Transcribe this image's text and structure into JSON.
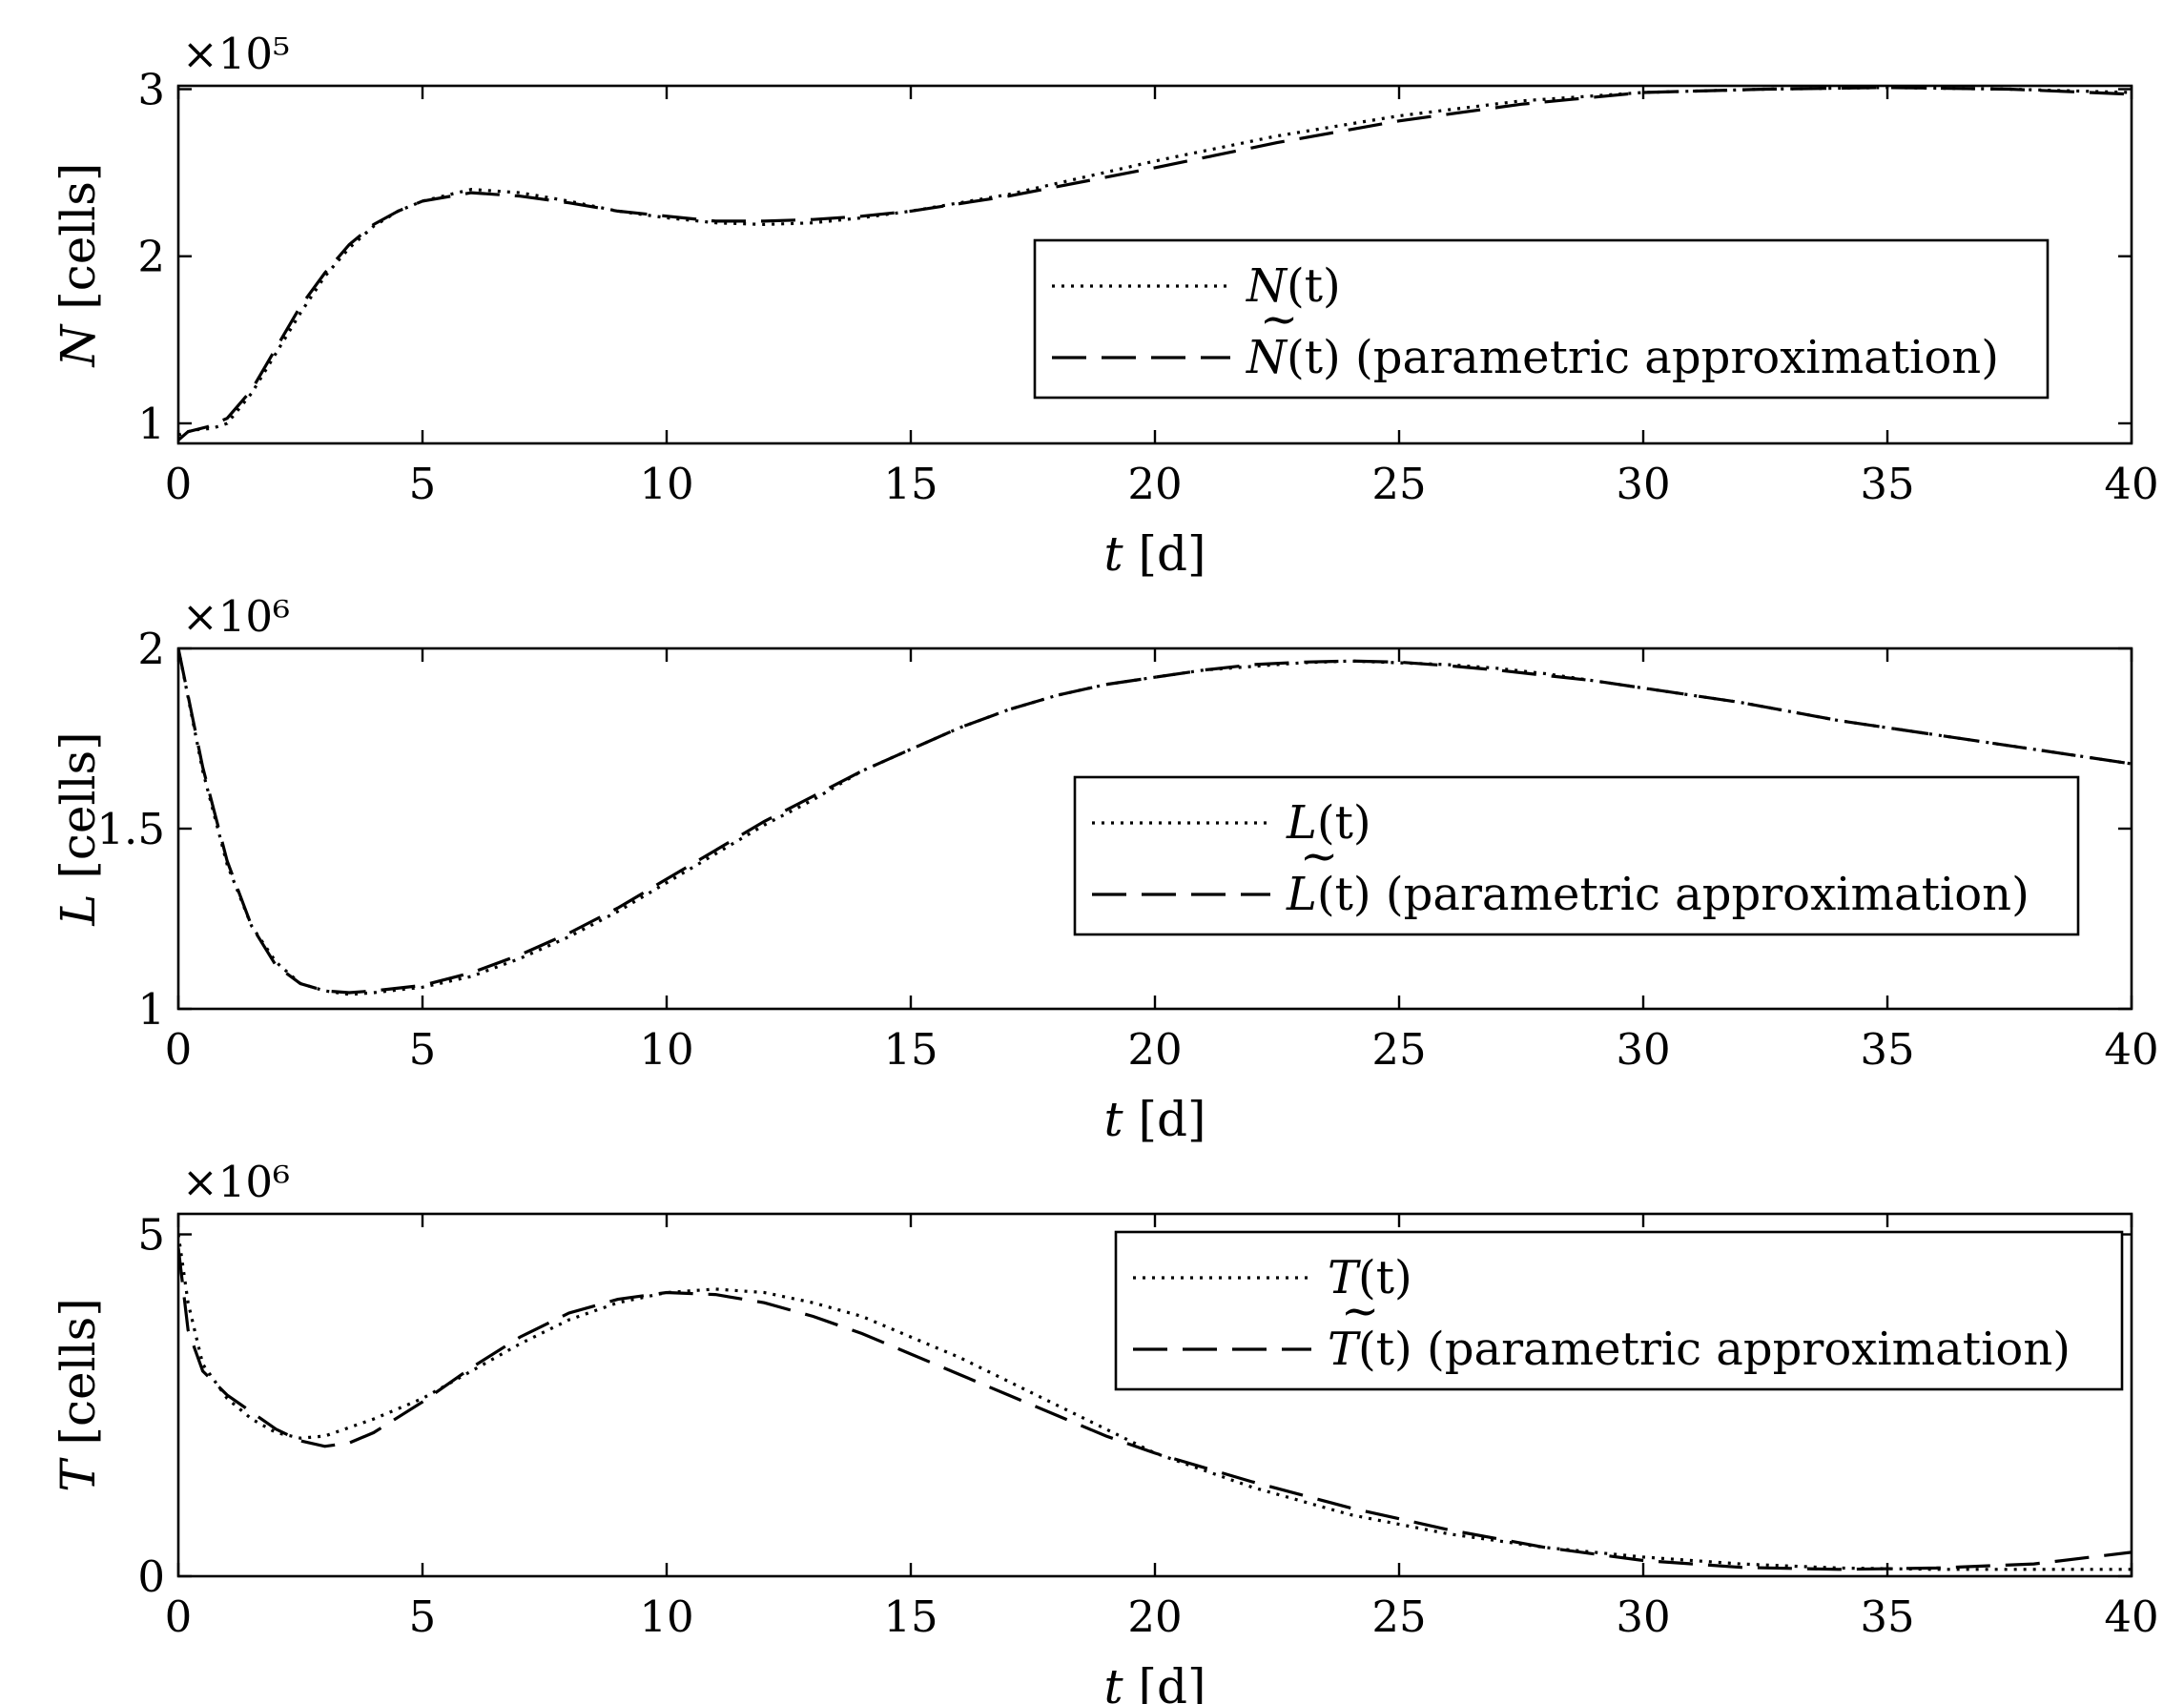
{
  "chart_data": [
    {
      "type": "line",
      "xlabel": "t [d]",
      "ylabel": "N [cells]",
      "exponent": "×10⁵",
      "xlim": [
        0,
        40
      ],
      "ylim": [
        0.88,
        3.02
      ],
      "xticks": [
        0,
        5,
        10,
        15,
        20,
        25,
        30,
        35,
        40
      ],
      "yticks": [
        1,
        2,
        3
      ],
      "ytick_labels": [
        "1",
        "2",
        "3"
      ],
      "legend_position": "center-right",
      "series": [
        {
          "name": "N(t)",
          "name_main": "N",
          "name_accent": "",
          "name_arg": "(t)",
          "name_suffix": "",
          "style": "dotted",
          "x": [
            0,
            0.3,
            0.7,
            1.0,
            1.5,
            2,
            2.5,
            3,
            3.5,
            4,
            4.5,
            5,
            6,
            7,
            8,
            9,
            10,
            11,
            12,
            13,
            14,
            15,
            17,
            20,
            22.5,
            25,
            27.5,
            30,
            32.5,
            35,
            37.5,
            40
          ],
          "y": [
            0.93,
            0.96,
            0.97,
            1.0,
            1.18,
            1.42,
            1.66,
            1.88,
            2.05,
            2.18,
            2.27,
            2.33,
            2.4,
            2.38,
            2.33,
            2.27,
            2.23,
            2.2,
            2.19,
            2.2,
            2.23,
            2.27,
            2.37,
            2.57,
            2.72,
            2.84,
            2.93,
            2.98,
            3.0,
            3.01,
            3.0,
            2.98
          ]
        },
        {
          "name": "Ñ(t) (parametric approximation)",
          "name_main": "N",
          "name_accent": "~",
          "name_arg": "(t)",
          "name_suffix": " (parametric approximation)",
          "style": "dashed",
          "x": [
            0,
            0.2,
            0.6,
            1.0,
            1.5,
            2,
            2.5,
            3,
            3.5,
            4,
            4.5,
            5,
            6,
            7,
            8,
            9,
            10,
            11,
            12,
            13,
            14,
            15,
            17,
            20,
            22.5,
            25,
            27.5,
            30,
            32.5,
            35,
            37.5,
            40
          ],
          "y": [
            0.9,
            0.95,
            0.98,
            1.03,
            1.2,
            1.45,
            1.7,
            1.9,
            2.07,
            2.19,
            2.27,
            2.33,
            2.38,
            2.36,
            2.32,
            2.27,
            2.24,
            2.21,
            2.21,
            2.22,
            2.24,
            2.27,
            2.36,
            2.53,
            2.68,
            2.81,
            2.91,
            2.98,
            3.0,
            3.01,
            3.0,
            2.97
          ]
        }
      ]
    },
    {
      "type": "line",
      "xlabel": "t [d]",
      "ylabel": "L [cells]",
      "exponent": "×10⁶",
      "xlim": [
        0,
        40
      ],
      "ylim": [
        1.0,
        2.0
      ],
      "xticks": [
        0,
        5,
        10,
        15,
        20,
        25,
        30,
        35,
        40
      ],
      "yticks": [
        1,
        1.5,
        2
      ],
      "ytick_labels": [
        "1",
        "1.5",
        "2"
      ],
      "legend_position": "center-right",
      "series": [
        {
          "name": "L(t)",
          "name_main": "L",
          "name_accent": "",
          "name_arg": "(t)",
          "name_suffix": "",
          "style": "dotted",
          "x": [
            0,
            0.5,
            1,
            1.5,
            2,
            2.5,
            3,
            3.5,
            4,
            5,
            6,
            7,
            8,
            9,
            10,
            11,
            12,
            13,
            14,
            15,
            16,
            17,
            18,
            19,
            20,
            21,
            22,
            23,
            24,
            25,
            26,
            27,
            28,
            29,
            30,
            32,
            34,
            36,
            38,
            40
          ],
          "y": [
            2.0,
            1.66,
            1.4,
            1.23,
            1.13,
            1.07,
            1.05,
            1.04,
            1.045,
            1.06,
            1.09,
            1.14,
            1.2,
            1.27,
            1.35,
            1.43,
            1.51,
            1.58,
            1.66,
            1.72,
            1.78,
            1.83,
            1.87,
            1.9,
            1.92,
            1.94,
            1.95,
            1.96,
            1.965,
            1.96,
            1.955,
            1.945,
            1.93,
            1.91,
            1.89,
            1.85,
            1.8,
            1.76,
            1.72,
            1.68
          ]
        },
        {
          "name": "L̃(t) (parametric approximation)",
          "name_main": "L",
          "name_accent": "~",
          "name_arg": "(t)",
          "name_suffix": " (parametric approximation)",
          "style": "dashed",
          "x": [
            0,
            0.5,
            1,
            1.5,
            2,
            2.5,
            3,
            3.5,
            4,
            5,
            6,
            7,
            8,
            9,
            10,
            11,
            12,
            13,
            14,
            15,
            16,
            17,
            18,
            19,
            20,
            21,
            22,
            23,
            24,
            25,
            26,
            27,
            28,
            29,
            30,
            32,
            34,
            36,
            38,
            40
          ],
          "y": [
            2.0,
            1.67,
            1.41,
            1.23,
            1.12,
            1.07,
            1.05,
            1.045,
            1.05,
            1.065,
            1.1,
            1.15,
            1.21,
            1.28,
            1.36,
            1.44,
            1.52,
            1.59,
            1.66,
            1.72,
            1.78,
            1.83,
            1.87,
            1.9,
            1.92,
            1.94,
            1.955,
            1.962,
            1.965,
            1.962,
            1.952,
            1.94,
            1.925,
            1.91,
            1.89,
            1.85,
            1.8,
            1.76,
            1.72,
            1.68
          ]
        }
      ]
    },
    {
      "type": "line",
      "xlabel": "t [d]",
      "ylabel": "T [cells]",
      "exponent": "×10⁶",
      "xlim": [
        0,
        40
      ],
      "ylim": [
        0,
        5.3
      ],
      "xticks": [
        0,
        5,
        10,
        15,
        20,
        25,
        30,
        35,
        40
      ],
      "yticks": [
        0,
        5
      ],
      "ytick_labels": [
        "0",
        "5"
      ],
      "legend_position": "top-right",
      "series": [
        {
          "name": "T(t)",
          "name_main": "T",
          "name_accent": "",
          "name_arg": "(t)",
          "name_suffix": "",
          "style": "dotted",
          "x": [
            0,
            0.2,
            0.5,
            1,
            1.5,
            2,
            2.5,
            3,
            4,
            5,
            6,
            7,
            8,
            9,
            10,
            11,
            12,
            13,
            14,
            15,
            16,
            17,
            18,
            19,
            20,
            22,
            24,
            26,
            28,
            30,
            32,
            34,
            36,
            38,
            40
          ],
          "y": [
            5.0,
            4.0,
            3.1,
            2.6,
            2.3,
            2.1,
            2.02,
            2.05,
            2.3,
            2.6,
            3.0,
            3.4,
            3.75,
            4.0,
            4.15,
            4.2,
            4.15,
            4.0,
            3.8,
            3.5,
            3.2,
            2.85,
            2.5,
            2.15,
            1.8,
            1.3,
            0.9,
            0.62,
            0.42,
            0.28,
            0.18,
            0.12,
            0.1,
            0.1,
            0.1
          ]
        },
        {
          "name": "T̃(t) (parametric approximation)",
          "name_main": "T",
          "name_accent": "~",
          "name_arg": "(t)",
          "name_suffix": " (parametric approximation)",
          "style": "dashed",
          "x": [
            0,
            0.2,
            0.5,
            1,
            1.5,
            2,
            2.5,
            3,
            3.5,
            4,
            5,
            6,
            7,
            8,
            9,
            10,
            11,
            12,
            13,
            14,
            15,
            16,
            17,
            18,
            19,
            20,
            22,
            24,
            26,
            28,
            30,
            32,
            34,
            36,
            38,
            40
          ],
          "y": [
            4.8,
            3.6,
            3.0,
            2.65,
            2.4,
            2.15,
            1.98,
            1.9,
            1.95,
            2.1,
            2.55,
            3.05,
            3.5,
            3.85,
            4.05,
            4.15,
            4.12,
            4.0,
            3.8,
            3.55,
            3.25,
            2.95,
            2.65,
            2.35,
            2.05,
            1.8,
            1.38,
            1.0,
            0.68,
            0.42,
            0.23,
            0.13,
            0.1,
            0.12,
            0.18,
            0.35
          ]
        }
      ]
    }
  ]
}
